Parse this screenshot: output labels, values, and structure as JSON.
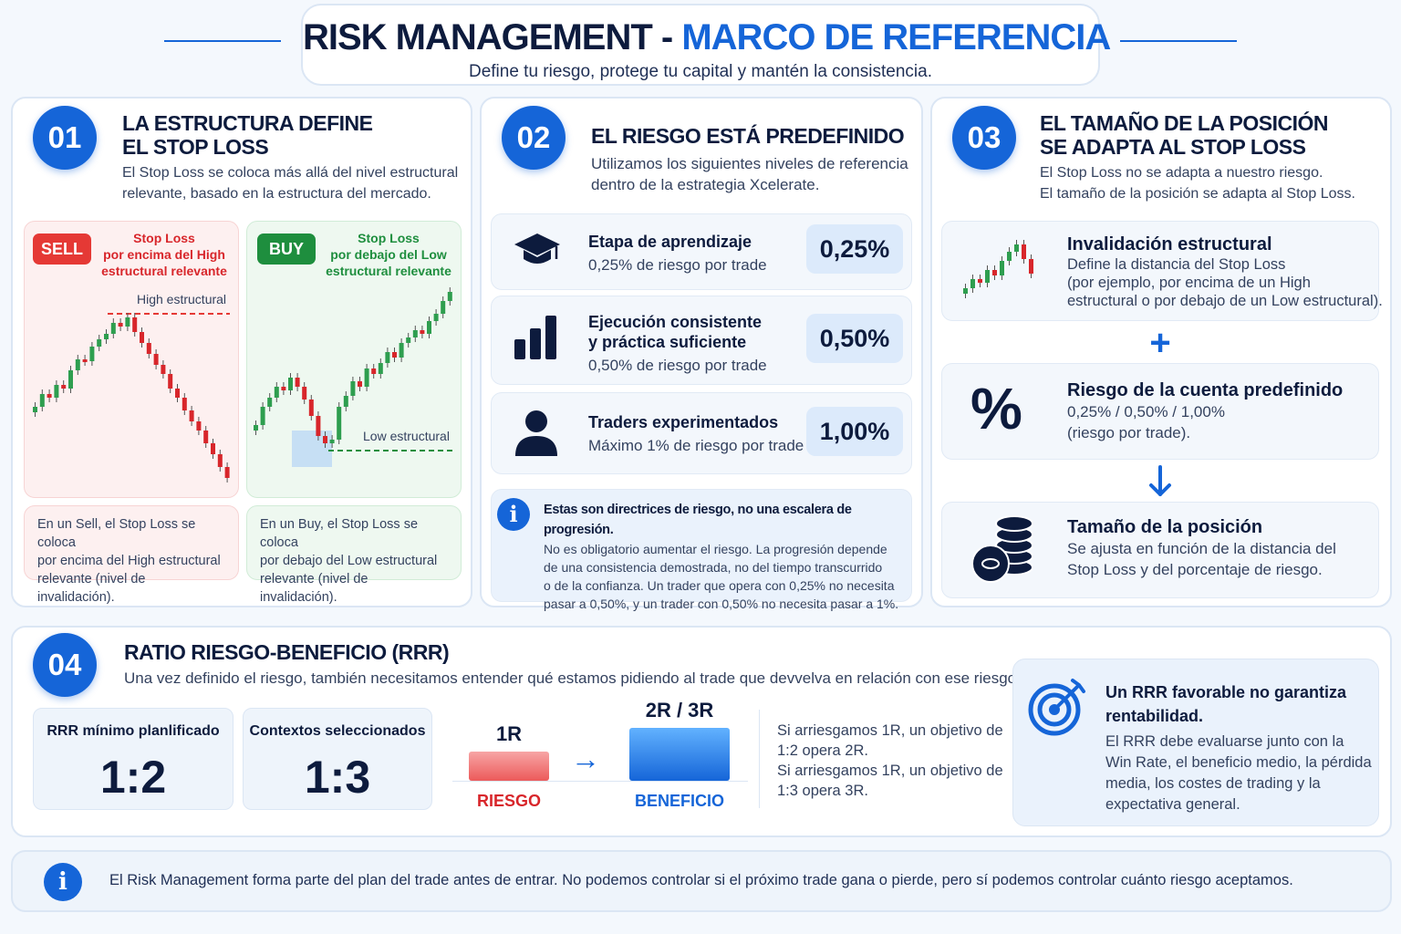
{
  "header": {
    "title_part1": "RISK MANAGEMENT -",
    "title_part2": "MARCO DE REFERENCIA",
    "subtitle": "Define tu riesgo, protege tu capital y mantén la consistencia."
  },
  "section1": {
    "number": "01",
    "title_line1": "LA ESTRUCTURA DEFINE",
    "title_line2": "EL STOP LOSS",
    "desc_line1": "El Stop Loss se coloca más allá del nivel estructural",
    "desc_line2": "relevante, basado en la estructura del mercado.",
    "sell": {
      "tag": "SELL",
      "sl_line1": "Stop Loss",
      "sl_line2": "por encima del High",
      "sl_line3": "estructural relevante",
      "level_label": "High estructural",
      "note_line1": "En un Sell, el Stop Loss se coloca",
      "note_line2": "por encima del High estructural",
      "note_line3": "relevante (nivel de invalidación)."
    },
    "buy": {
      "tag": "BUY",
      "sl_line1": "Stop Loss",
      "sl_line2": "por debajo del Low",
      "sl_line3": "estructural relevante",
      "level_label": "Low estructural",
      "note_line1": "En un Buy, el Stop Loss se coloca",
      "note_line2": "por debajo del Low estructural",
      "note_line3": "relevante (nivel de invalidación)."
    }
  },
  "section2": {
    "number": "02",
    "title": "EL RIESGO ESTÁ PREDEFINIDO",
    "desc_line1": "Utilizamos los siguientes niveles de referencia",
    "desc_line2": "dentro de la estrategia Xcelerate.",
    "levels": [
      {
        "icon": "graduation-cap-icon",
        "title_line1": "Etapa de aprendizaje",
        "title_line2": "",
        "sub": "0,25% de riesgo por trade",
        "value": "0,25%"
      },
      {
        "icon": "bar-chart-icon",
        "title_line1": "Ejecución consistente",
        "title_line2": "y práctica suficiente",
        "sub": "0,50% de riesgo por trade",
        "value": "0,50%"
      },
      {
        "icon": "user-icon",
        "title_line1": "Traders experimentados",
        "title_line2": "",
        "sub": "Máximo 1% de riesgo por trade",
        "value": "1,00%"
      }
    ],
    "info": {
      "title": "Estas son directrices de riesgo, no una escalera de progresión.",
      "line1": "No es obligatorio aumentar el riesgo. La progresión depende",
      "line2": "de una consistencia demostrada, no del tiempo transcurrido",
      "line3": "o de la confianza. Un trader que opera con 0,25% no necesita",
      "line4": "pasar a 0,50%, y un trader con 0,50% no necesita pasar a 1%."
    }
  },
  "section3": {
    "number": "03",
    "title_line1": "EL TAMAÑO DE LA POSICIÓN",
    "title_line2": "SE ADAPTA AL STOP LOSS",
    "desc_line1": "El Stop Loss no se adapta a nuestro riesgo.",
    "desc_line2": "El tamaño de la posición se adapta al Stop Loss.",
    "plus": "+",
    "steps": [
      {
        "icon": "candlestick-icon",
        "title": "Invalidación estructural",
        "l1": "Define la distancia del Stop Loss",
        "l2": "(por ejemplo, por encima de un High",
        "l3": "estructural o por debajo de un Low estructural)."
      },
      {
        "icon": "percent-icon",
        "title": "Riesgo de la cuenta predefinido",
        "l1": "0,25% / 0,50% / 1,00%",
        "l2": "(riesgo por trade).",
        "l3": ""
      },
      {
        "icon": "coins-icon",
        "title": "Tamaño de la posición",
        "l1": "Se ajusta en función de la distancia del",
        "l2": "Stop Loss y del porcentaje de riesgo.",
        "l3": ""
      }
    ]
  },
  "section4": {
    "number": "04",
    "title": "RATIO RIESGO-BENEFICIO (RRR)",
    "desc": "Una vez definido el riesgo, también necesitamos entender qué estamos pidiendo al trade que devvelva en relación con ese riesgo.",
    "min_label": "RRR mínimo planlificado",
    "min_value": "1:2",
    "sel_label": "Contextos seleccionados",
    "sel_value": "1:3",
    "risk_top": "1R",
    "risk_label": "RIESGO",
    "benefit_top": "2R / 3R",
    "benefit_label": "BENEFICIO",
    "explain_line1": "Si arriesgamos 1R, un objetivo de",
    "explain_line2": "1:2 opera 2R.",
    "explain_line3": "Si arriesgamos 1R, un objetivo de",
    "explain_line4": "1:3 opera 3R.",
    "callout_title_line1": "Un RRR favorable no garantiza",
    "callout_title_line2": "rentabilidad.",
    "callout_l1": "El RRR debe evaluarse junto con la",
    "callout_l2": "Win Rate, el beneficio medio, la pérdida",
    "callout_l3": "media, los costes de trading y la",
    "callout_l4": "expectativa general."
  },
  "footer": {
    "text": "El Risk Management forma parte del plan del trade antes de entrar. No podemos controlar si el próximo trade gana o pierde, pero sí podemos controlar cuánto riesgo aceptamos."
  },
  "colors": {
    "accent": "#1565d8",
    "sell": "#d8262b",
    "buy": "#1e8e3e",
    "dark": "#0d1b3d"
  }
}
